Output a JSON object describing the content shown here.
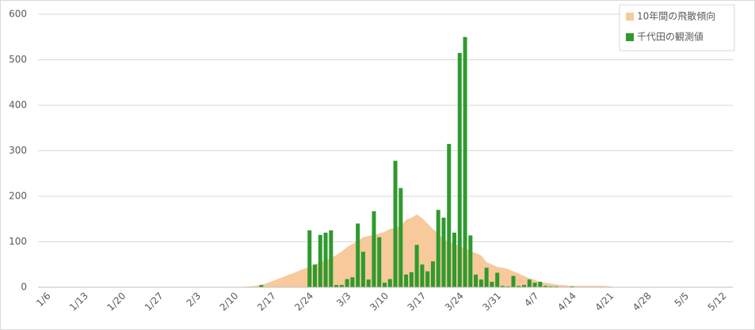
{
  "chart_data": {
    "type": "bar",
    "categories": [
      "1/6",
      null,
      null,
      null,
      null,
      null,
      null,
      "1/13",
      null,
      null,
      null,
      null,
      null,
      null,
      "1/20",
      null,
      null,
      null,
      null,
      null,
      null,
      "1/27",
      null,
      null,
      null,
      null,
      null,
      null,
      "2/3",
      null,
      null,
      null,
      null,
      null,
      null,
      "2/10",
      null,
      null,
      null,
      null,
      null,
      null,
      "2/17",
      null,
      null,
      null,
      null,
      null,
      null,
      "2/24",
      null,
      null,
      null,
      null,
      null,
      null,
      "3/3",
      null,
      null,
      null,
      null,
      null,
      null,
      "3/10",
      null,
      null,
      null,
      null,
      null,
      null,
      "3/17",
      null,
      null,
      null,
      null,
      null,
      null,
      "3/24",
      null,
      null,
      null,
      null,
      null,
      null,
      "3/31",
      null,
      null,
      null,
      null,
      null,
      null,
      "4/7",
      null,
      null,
      null,
      null,
      null,
      null,
      "4/14",
      null,
      null,
      null,
      null,
      null,
      null,
      "4/21",
      null,
      null,
      null,
      null,
      null,
      null,
      "4/28",
      null,
      null,
      null,
      null,
      null,
      null,
      "5/5",
      null,
      null,
      null,
      null,
      null,
      null,
      "5/12"
    ],
    "series": [
      {
        "name": "10年間の飛散傾向",
        "type": "area",
        "color": "#f8c99a",
        "values": [
          0,
          0,
          0,
          0,
          0,
          0,
          0,
          0,
          0,
          0,
          0,
          0,
          0,
          0,
          0,
          0,
          0,
          0,
          0,
          0,
          0,
          0,
          0,
          0,
          0,
          0,
          0,
          0,
          0,
          0,
          0,
          0,
          0,
          0,
          0,
          0,
          0,
          1,
          2,
          3,
          5,
          9,
          13,
          18,
          22,
          27,
          31,
          36,
          41,
          45,
          50,
          55,
          60,
          64,
          71,
          79,
          88,
          95,
          102,
          110,
          113,
          115,
          118,
          122,
          128,
          131,
          135,
          148,
          153,
          160,
          152,
          140,
          128,
          118,
          105,
          100,
          95,
          90,
          85,
          80,
          75,
          70,
          55,
          50,
          45,
          43,
          40,
          35,
          30,
          25,
          20,
          16,
          12,
          10,
          8,
          6,
          5,
          4,
          3,
          3,
          3,
          3,
          3,
          3,
          3,
          2,
          0,
          0,
          0,
          0,
          0,
          0,
          0,
          0,
          0,
          0,
          0,
          0,
          0,
          0,
          0,
          0,
          0,
          0,
          0,
          0,
          0
        ]
      },
      {
        "name": "千代田の観測値",
        "type": "bar",
        "color": "#2e9a2e",
        "values": [
          0,
          0,
          0,
          0,
          0,
          0,
          0,
          0,
          0,
          0,
          0,
          0,
          0,
          0,
          0,
          0,
          0,
          0,
          0,
          0,
          0,
          0,
          0,
          0,
          0,
          0,
          0,
          0,
          0,
          0,
          0,
          0,
          0,
          0,
          0,
          0,
          0,
          0,
          0,
          0,
          5,
          0,
          0,
          0,
          0,
          0,
          0,
          0,
          0,
          125,
          50,
          115,
          120,
          125,
          5,
          5,
          18,
          22,
          140,
          78,
          17,
          167,
          110,
          10,
          18,
          278,
          218,
          28,
          33,
          93,
          50,
          35,
          57,
          170,
          153,
          315,
          120,
          515,
          550,
          114,
          28,
          17,
          43,
          12,
          32,
          3,
          2,
          25,
          3,
          5,
          17,
          10,
          12,
          3,
          2,
          2,
          0,
          0,
          2,
          0,
          0,
          0,
          0,
          0,
          0,
          0,
          0,
          0,
          0,
          0,
          0,
          0,
          0,
          0,
          0,
          0,
          0,
          0,
          0,
          0,
          0,
          0,
          0,
          0,
          0,
          0,
          0
        ]
      }
    ],
    "ylim": [
      0,
      600
    ],
    "yticks": [
      0,
      100,
      200,
      300,
      400,
      500,
      600
    ],
    "grid": true,
    "legend": "top-right"
  }
}
